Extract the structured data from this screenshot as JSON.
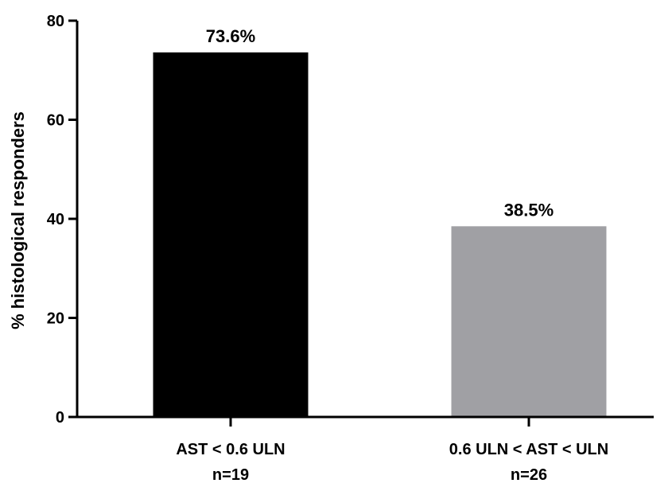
{
  "chart_data": {
    "type": "bar",
    "title": "",
    "xlabel": "",
    "ylabel": "% histological responders",
    "ylim": [
      0,
      80
    ],
    "yticks": [
      0,
      20,
      40,
      60,
      80
    ],
    "grid": false,
    "categories": [
      {
        "line1": "AST < 0.6 ULN",
        "line2": "n=19"
      },
      {
        "line1": "0.6 ULN < AST < ULN",
        "line2": "n=26"
      }
    ],
    "values": [
      73.6,
      38.5
    ],
    "value_labels": [
      "73.6%",
      "38.5%"
    ],
    "colors": [
      "#000000",
      "#a0a0a4"
    ]
  }
}
